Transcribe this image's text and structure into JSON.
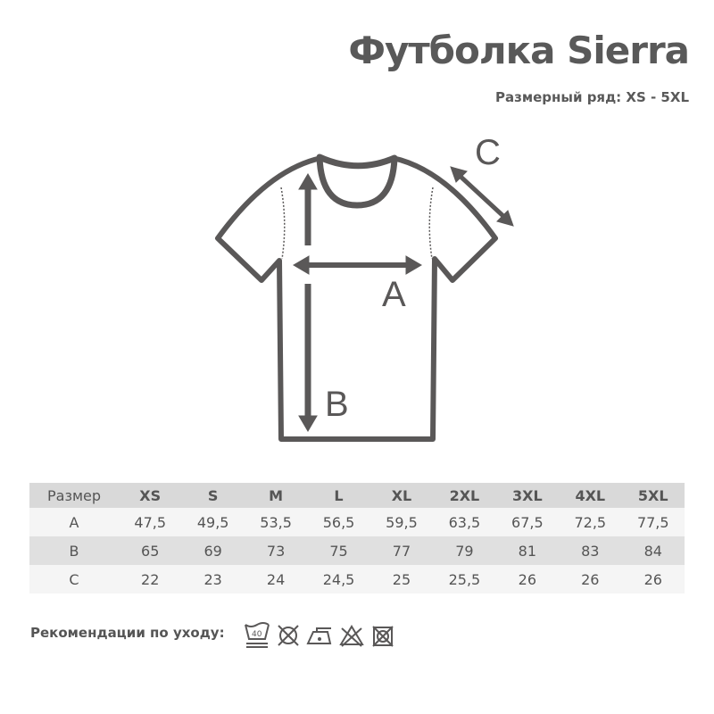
{
  "title": "Футболка Sierra",
  "subtitle": "Размерный ряд: XS - 5XL",
  "diagram": {
    "label_a": "A",
    "label_b": "B",
    "label_c": "C",
    "color": "#5a5858"
  },
  "table": {
    "headers": [
      "Размер",
      "XS",
      "S",
      "M",
      "L",
      "XL",
      "2XL",
      "3XL",
      "4XL",
      "5XL"
    ],
    "rows": [
      [
        "A",
        "47,5",
        "49,5",
        "53,5",
        "56,5",
        "59,5",
        "63,5",
        "67,5",
        "72,5",
        "77,5"
      ],
      [
        "B",
        "65",
        "69",
        "73",
        "75",
        "77",
        "79",
        "81",
        "83",
        "84"
      ],
      [
        "C",
        "22",
        "23",
        "24",
        "24,5",
        "25",
        "25,5",
        "26",
        "26",
        "26"
      ]
    ]
  },
  "care": {
    "label": "Рекомендации по уходу:",
    "wash_temp": "40",
    "icons": [
      "wash-40-icon",
      "no-bleach-icon",
      "iron-low-icon",
      "no-chlorine-bleach-icon",
      "no-tumble-dry-icon"
    ]
  }
}
